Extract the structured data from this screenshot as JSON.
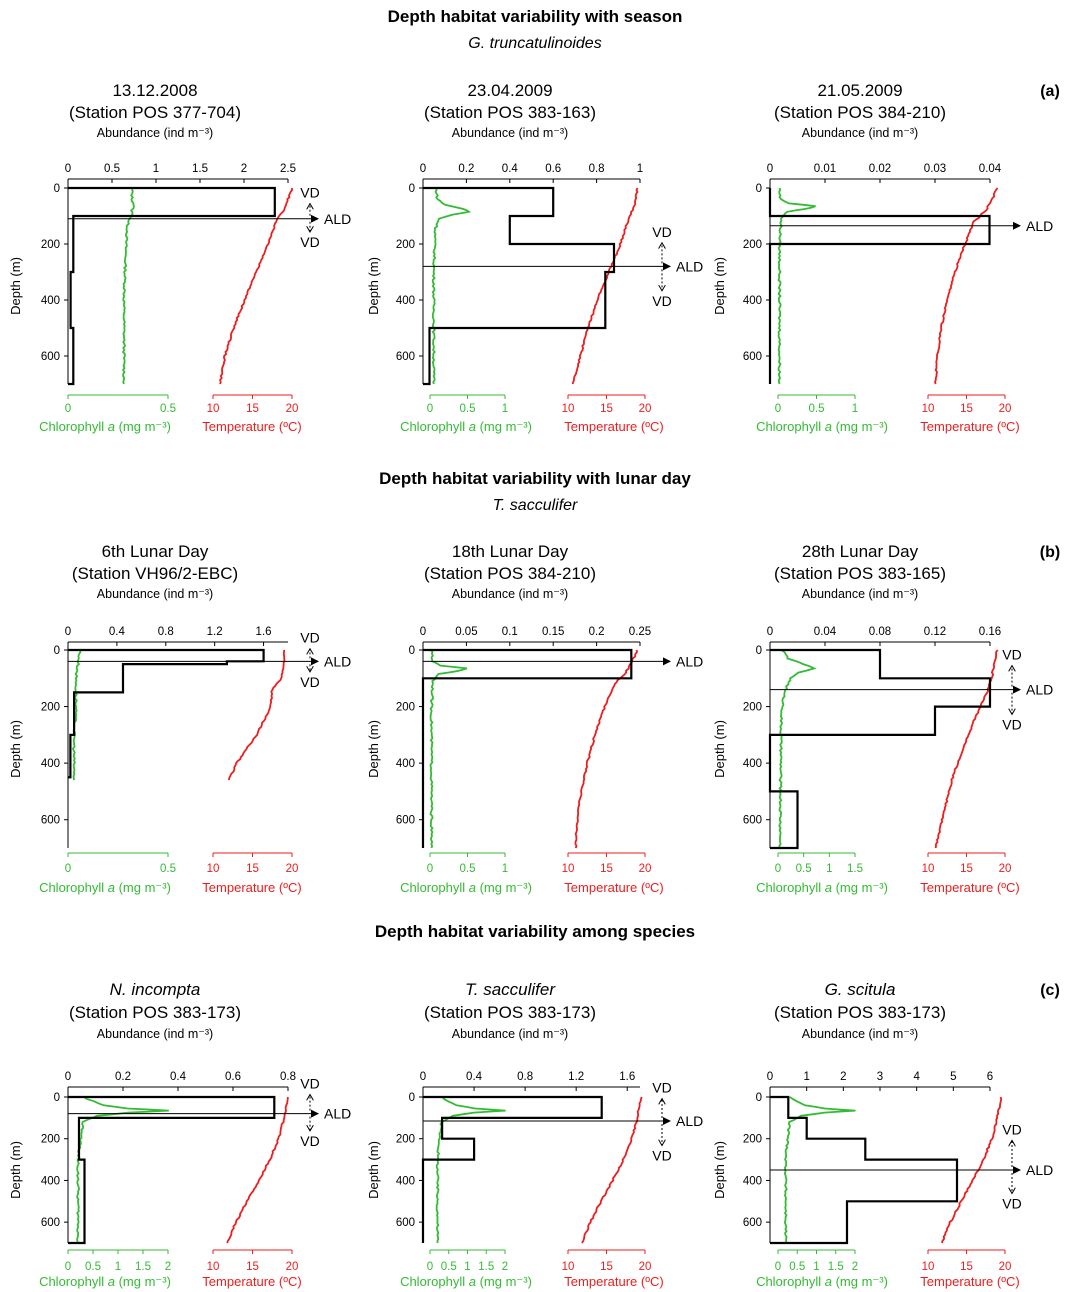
{
  "sections": [
    {
      "title": "Depth habitat variability with season",
      "subtitle": "G. truncatulinoides",
      "letter": "(a)"
    },
    {
      "title": "Depth habitat variability with lunar day",
      "subtitle": "T. sacculifer",
      "letter": "(b)"
    },
    {
      "title": "Depth habitat variability among species",
      "subtitle": "",
      "letter": "(c)"
    }
  ],
  "labels": {
    "abundance": "Abundance (ind m⁻³)",
    "depth": "Depth (m)",
    "chl_prefix": "Chlorophyll ",
    "chl_italic": "a",
    "chl_suffix": " (mg m⁻³)",
    "temp": "Temperature (ºC)",
    "ald": "ALD",
    "vd": "VD"
  },
  "colors": {
    "chlorophyll": "#33bb33",
    "temperature": "#ee1c1c",
    "abundance": "#000000"
  },
  "chart_data": [
    {
      "id": "a1",
      "type": "line",
      "title": "13.12.2008",
      "subtitle": "(Station POS 377-704)",
      "abundance_ticks": [
        "0",
        "0.5",
        "1",
        "1.5",
        "2",
        "2.5"
      ],
      "abundance_max": 2.5,
      "abundance_steps": [
        [
          0,
          100,
          2.35
        ],
        [
          100,
          300,
          0.06
        ],
        [
          300,
          500,
          0.03
        ],
        [
          500,
          700,
          0.06
        ]
      ],
      "depth_ticks": [
        0,
        200,
        400,
        600
      ],
      "ylim": [
        0,
        700
      ],
      "chl_ticks": [
        "0",
        "0.5"
      ],
      "chl_tick_values": [
        0,
        0.5
      ],
      "chl_max": 0.6,
      "chl_profile": [
        [
          0,
          0.32
        ],
        [
          40,
          0.32
        ],
        [
          60,
          0.33
        ],
        [
          80,
          0.32
        ],
        [
          100,
          0.32
        ],
        [
          120,
          0.3
        ],
        [
          200,
          0.29
        ],
        [
          400,
          0.28
        ],
        [
          700,
          0.28
        ]
      ],
      "temp_ticks": [
        "10",
        "15",
        "20"
      ],
      "temp_tick_values": [
        10,
        15,
        20
      ],
      "temp_range": [
        10,
        20
      ],
      "temp_profile": [
        [
          0,
          20.0
        ],
        [
          40,
          19.5
        ],
        [
          60,
          19.2
        ],
        [
          80,
          18.9
        ],
        [
          120,
          18.0
        ],
        [
          200,
          17.0
        ],
        [
          300,
          15.5
        ],
        [
          400,
          14.0
        ],
        [
          500,
          12.6
        ],
        [
          600,
          11.5
        ],
        [
          700,
          10.9
        ]
      ],
      "ald_depth": 110,
      "vd_above_depth": 20,
      "vd_below_depth": 200
    },
    {
      "id": "a2",
      "type": "line",
      "title": "23.04.2009",
      "subtitle": "(Station POS 383-163)",
      "abundance_ticks": [
        "0",
        "0.2",
        "0.4",
        "0.6",
        "0.8",
        "1"
      ],
      "abundance_max": 1.0,
      "abundance_steps": [
        [
          0,
          100,
          0.6
        ],
        [
          100,
          200,
          0.4
        ],
        [
          200,
          300,
          0.88
        ],
        [
          300,
          500,
          0.84
        ],
        [
          500,
          700,
          0.03
        ]
      ],
      "depth_ticks": [
        0,
        200,
        400,
        600
      ],
      "ylim": [
        0,
        700
      ],
      "chl_ticks": [
        "0",
        "0.5",
        "1"
      ],
      "chl_tick_values": [
        0,
        0.5,
        1
      ],
      "chl_max": 2.0,
      "chl_profile": [
        [
          0,
          0.08
        ],
        [
          40,
          0.1
        ],
        [
          60,
          0.2
        ],
        [
          75,
          0.45
        ],
        [
          85,
          0.52
        ],
        [
          95,
          0.3
        ],
        [
          110,
          0.12
        ],
        [
          150,
          0.07
        ],
        [
          300,
          0.05
        ],
        [
          700,
          0.05
        ]
      ],
      "temp_ticks": [
        "10",
        "15",
        "20"
      ],
      "temp_tick_values": [
        10,
        15,
        20
      ],
      "temp_range": [
        10,
        20
      ],
      "temp_profile": [
        [
          0,
          19.0
        ],
        [
          50,
          18.8
        ],
        [
          100,
          18.0
        ],
        [
          200,
          16.8
        ],
        [
          300,
          15.3
        ],
        [
          400,
          13.8
        ],
        [
          500,
          12.6
        ],
        [
          600,
          11.6
        ],
        [
          700,
          10.6
        ]
      ],
      "ald_depth": 280,
      "vd_above_depth": 160,
      "vd_below_depth": 410
    },
    {
      "id": "a3",
      "type": "line",
      "title": "21.05.2009",
      "subtitle": "(Station POS 384-210)",
      "abundance_ticks": [
        "0",
        "0.01",
        "0.02",
        "0.03",
        "0.04"
      ],
      "abundance_max": 0.04,
      "abundance_steps": [
        [
          0,
          100,
          0.0
        ],
        [
          100,
          200,
          0.0399
        ],
        [
          200,
          700,
          0.0
        ]
      ],
      "depth_ticks": [
        0,
        200,
        400,
        600
      ],
      "ylim": [
        0,
        700
      ],
      "chl_ticks": [
        "0",
        "0.5",
        "1"
      ],
      "chl_tick_values": [
        0,
        0.5,
        1
      ],
      "chl_max": 2.0,
      "chl_profile": [
        [
          0,
          0.02
        ],
        [
          40,
          0.03
        ],
        [
          55,
          0.15
        ],
        [
          65,
          0.5
        ],
        [
          75,
          0.35
        ],
        [
          85,
          0.12
        ],
        [
          110,
          0.04
        ],
        [
          200,
          0.02
        ],
        [
          700,
          0.02
        ]
      ],
      "temp_ticks": [
        "10",
        "15",
        "20"
      ],
      "temp_tick_values": [
        10,
        15,
        20
      ],
      "temp_range": [
        10,
        20
      ],
      "temp_profile": [
        [
          0,
          19.0
        ],
        [
          30,
          18.5
        ],
        [
          80,
          17.5
        ],
        [
          120,
          16.0
        ],
        [
          200,
          14.8
        ],
        [
          300,
          13.5
        ],
        [
          400,
          12.5
        ],
        [
          500,
          11.7
        ],
        [
          600,
          11.2
        ],
        [
          700,
          11.0
        ]
      ],
      "ald_depth": 135,
      "vd_above_depth": null,
      "vd_below_depth": null
    },
    {
      "id": "b1",
      "type": "line",
      "title": "6th Lunar Day",
      "subtitle": "(Station VH96/2-EBC)",
      "abundance_ticks": [
        "0",
        "0.4",
        "0.8",
        "1.2",
        "1.6"
      ],
      "abundance_max": 1.8,
      "abundance_steps": [
        [
          0,
          40,
          1.6
        ],
        [
          40,
          50,
          1.3
        ],
        [
          50,
          150,
          0.45
        ],
        [
          150,
          300,
          0.05
        ],
        [
          300,
          450,
          0.02
        ]
      ],
      "depth_ticks": [
        0,
        200,
        400,
        600
      ],
      "ylim": [
        0,
        700
      ],
      "chl_ticks": [
        "0",
        "0.5"
      ],
      "chl_tick_values": [
        0,
        0.5
      ],
      "chl_max": 0.6,
      "chl_profile": [
        [
          0,
          0.06
        ],
        [
          50,
          0.05
        ],
        [
          100,
          0.04
        ],
        [
          200,
          0.04
        ],
        [
          300,
          0.03
        ],
        [
          460,
          0.03
        ]
      ],
      "temp_ticks": [
        "10",
        "15",
        "20"
      ],
      "temp_tick_values": [
        10,
        15,
        20
      ],
      "temp_range": [
        10,
        25
      ],
      "temp_profile": [
        [
          0,
          19.0
        ],
        [
          60,
          18.9
        ],
        [
          100,
          18.7
        ],
        [
          140,
          17.5
        ],
        [
          200,
          17.3
        ],
        [
          300,
          15.5
        ],
        [
          400,
          13.0
        ],
        [
          460,
          12.0
        ]
      ],
      "ald_depth": 40,
      "vd_above_depth": -40,
      "vd_below_depth": 120
    },
    {
      "id": "b2",
      "type": "line",
      "title": "18th Lunar Day",
      "subtitle": "(Station POS 384-210)",
      "abundance_ticks": [
        "0",
        "0.05",
        "0.1",
        "0.15",
        "0.2",
        "0.25"
      ],
      "abundance_max": 0.25,
      "abundance_steps": [
        [
          0,
          100,
          0.24
        ],
        [
          100,
          700,
          0.0
        ]
      ],
      "depth_ticks": [
        0,
        200,
        400,
        600
      ],
      "ylim": [
        0,
        700
      ],
      "chl_ticks": [
        "0",
        "0.5",
        "1"
      ],
      "chl_tick_values": [
        0,
        0.5,
        1
      ],
      "chl_max": 2.0,
      "chl_profile": [
        [
          0,
          0.02
        ],
        [
          40,
          0.03
        ],
        [
          55,
          0.15
        ],
        [
          65,
          0.5
        ],
        [
          75,
          0.35
        ],
        [
          85,
          0.12
        ],
        [
          110,
          0.04
        ],
        [
          200,
          0.02
        ],
        [
          700,
          0.02
        ]
      ],
      "temp_ticks": [
        "10",
        "15",
        "20"
      ],
      "temp_tick_values": [
        10,
        15,
        20
      ],
      "temp_range": [
        10,
        20
      ],
      "temp_profile": [
        [
          0,
          19.0
        ],
        [
          30,
          18.5
        ],
        [
          80,
          17.5
        ],
        [
          120,
          16.0
        ],
        [
          200,
          14.8
        ],
        [
          300,
          13.5
        ],
        [
          400,
          12.5
        ],
        [
          500,
          11.7
        ],
        [
          600,
          11.2
        ],
        [
          700,
          11.0
        ]
      ],
      "ald_depth": 40,
      "vd_above_depth": null,
      "vd_below_depth": null
    },
    {
      "id": "b3",
      "type": "line",
      "title": "28th Lunar Day",
      "subtitle": "(Station POS 383-165)",
      "abundance_ticks": [
        "0",
        "0.04",
        "0.08",
        "0.12",
        "0.16"
      ],
      "abundance_max": 0.16,
      "abundance_steps": [
        [
          0,
          100,
          0.08
        ],
        [
          100,
          200,
          0.16
        ],
        [
          200,
          300,
          0.12
        ],
        [
          300,
          500,
          0.0
        ],
        [
          500,
          700,
          0.02
        ]
      ],
      "depth_ticks": [
        0,
        200,
        400,
        600
      ],
      "ylim": [
        0,
        700
      ],
      "chl_ticks": [
        "0",
        "0.5",
        "1",
        "1.5"
      ],
      "chl_tick_values": [
        0,
        0.5,
        1,
        1.5
      ],
      "chl_max": 3.0,
      "chl_profile": [
        [
          0,
          0.08
        ],
        [
          30,
          0.2
        ],
        [
          50,
          0.5
        ],
        [
          65,
          0.7
        ],
        [
          80,
          0.4
        ],
        [
          100,
          0.25
        ],
        [
          150,
          0.12
        ],
        [
          250,
          0.06
        ],
        [
          700,
          0.04
        ]
      ],
      "temp_ticks": [
        "10",
        "15",
        "20"
      ],
      "temp_tick_values": [
        10,
        15,
        20
      ],
      "temp_range": [
        10,
        20
      ],
      "temp_profile": [
        [
          0,
          19.0
        ],
        [
          60,
          18.5
        ],
        [
          100,
          18.3
        ],
        [
          160,
          17.5
        ],
        [
          250,
          16.0
        ],
        [
          350,
          14.5
        ],
        [
          450,
          13.2
        ],
        [
          550,
          12.3
        ],
        [
          700,
          11.0
        ]
      ],
      "ald_depth": 140,
      "vd_above_depth": 20,
      "vd_below_depth": 270
    },
    {
      "id": "c1",
      "type": "line",
      "title": "N. incompta",
      "title_italic": true,
      "subtitle": "(Station POS 383-173)",
      "abundance_ticks": [
        "0",
        "0.2",
        "0.4",
        "0.6",
        "0.8"
      ],
      "abundance_max": 0.8,
      "abundance_steps": [
        [
          0,
          100,
          0.75
        ],
        [
          100,
          300,
          0.04
        ],
        [
          300,
          700,
          0.06
        ]
      ],
      "depth_ticks": [
        0,
        200,
        400,
        600
      ],
      "ylim": [
        0,
        700
      ],
      "chl_ticks": [
        "0",
        "0.5",
        "1",
        "1.5",
        "2"
      ],
      "chl_tick_values": [
        0,
        0.5,
        1,
        1.5,
        2
      ],
      "chl_max": 5.0,
      "chl_profile": [
        [
          0,
          0.3
        ],
        [
          20,
          0.5
        ],
        [
          40,
          0.7
        ],
        [
          55,
          1.2
        ],
        [
          65,
          2.0
        ],
        [
          75,
          1.2
        ],
        [
          90,
          0.6
        ],
        [
          120,
          0.3
        ],
        [
          300,
          0.2
        ],
        [
          700,
          0.2
        ]
      ],
      "temp_ticks": [
        "10",
        "15",
        "20"
      ],
      "temp_tick_values": [
        10,
        15,
        20
      ],
      "temp_range": [
        10,
        20
      ],
      "temp_profile": [
        [
          0,
          19.5
        ],
        [
          100,
          19.0
        ],
        [
          200,
          18.3
        ],
        [
          300,
          17.2
        ],
        [
          400,
          15.8
        ],
        [
          500,
          14.3
        ],
        [
          600,
          12.9
        ],
        [
          700,
          11.8
        ]
      ],
      "ald_depth": 80,
      "vd_above_depth": -60,
      "vd_below_depth": 220
    },
    {
      "id": "c2",
      "type": "line",
      "title": "T. sacculifer",
      "title_italic": true,
      "subtitle": "(Station POS 383-173)",
      "abundance_ticks": [
        "0",
        "0.4",
        "0.8",
        "1.2",
        "1.6"
      ],
      "abundance_max": 1.7,
      "abundance_steps": [
        [
          0,
          100,
          1.4
        ],
        [
          100,
          200,
          0.15
        ],
        [
          200,
          300,
          0.4
        ],
        [
          300,
          700,
          0.0
        ]
      ],
      "depth_ticks": [
        0,
        200,
        400,
        600
      ],
      "ylim": [
        0,
        700
      ],
      "chl_ticks": [
        "0",
        "0.5",
        "1",
        "1.5",
        "2"
      ],
      "chl_tick_values": [
        0,
        0.5,
        1,
        1.5,
        2
      ],
      "chl_max": 5.0,
      "chl_profile": [
        [
          0,
          0.3
        ],
        [
          20,
          0.5
        ],
        [
          40,
          0.7
        ],
        [
          55,
          1.2
        ],
        [
          65,
          2.0
        ],
        [
          75,
          1.2
        ],
        [
          90,
          0.6
        ],
        [
          120,
          0.3
        ],
        [
          300,
          0.2
        ],
        [
          700,
          0.2
        ]
      ],
      "temp_ticks": [
        "10",
        "15",
        "20"
      ],
      "temp_tick_values": [
        10,
        15,
        20
      ],
      "temp_range": [
        10,
        20
      ],
      "temp_profile": [
        [
          0,
          19.5
        ],
        [
          100,
          19.0
        ],
        [
          200,
          18.3
        ],
        [
          300,
          17.2
        ],
        [
          400,
          15.8
        ],
        [
          500,
          14.3
        ],
        [
          600,
          12.9
        ],
        [
          700,
          11.8
        ]
      ],
      "ald_depth": 115,
      "vd_above_depth": -40,
      "vd_below_depth": 290
    },
    {
      "id": "c3",
      "type": "line",
      "title": "G. scitula",
      "title_italic": true,
      "subtitle": "(Station POS 383-173)",
      "abundance_ticks": [
        "0",
        "1",
        "2",
        "3",
        "4",
        "5",
        "6"
      ],
      "abundance_max": 6.0,
      "abundance_steps": [
        [
          0,
          100,
          0.5
        ],
        [
          100,
          200,
          1.0
        ],
        [
          200,
          300,
          2.6
        ],
        [
          300,
          500,
          5.1
        ],
        [
          500,
          700,
          2.1
        ]
      ],
      "depth_ticks": [
        0,
        200,
        400,
        600
      ],
      "ylim": [
        0,
        700
      ],
      "chl_ticks": [
        "0",
        "0.5",
        "1",
        "1.5",
        "2"
      ],
      "chl_tick_values": [
        0,
        0.5,
        1,
        1.5,
        2
      ],
      "chl_max": 5.0,
      "chl_profile": [
        [
          0,
          0.3
        ],
        [
          20,
          0.5
        ],
        [
          40,
          0.7
        ],
        [
          55,
          1.2
        ],
        [
          65,
          2.0
        ],
        [
          75,
          1.2
        ],
        [
          90,
          0.6
        ],
        [
          120,
          0.3
        ],
        [
          300,
          0.2
        ],
        [
          700,
          0.2
        ]
      ],
      "temp_ticks": [
        "10",
        "15",
        "20"
      ],
      "temp_tick_values": [
        10,
        15,
        20
      ],
      "temp_range": [
        10,
        20
      ],
      "temp_profile": [
        [
          0,
          19.5
        ],
        [
          100,
          19.0
        ],
        [
          200,
          18.3
        ],
        [
          300,
          17.2
        ],
        [
          400,
          15.8
        ],
        [
          500,
          14.3
        ],
        [
          600,
          12.9
        ],
        [
          700,
          11.8
        ]
      ],
      "ald_depth": 350,
      "vd_above_depth": 160,
      "vd_below_depth": 520
    }
  ]
}
